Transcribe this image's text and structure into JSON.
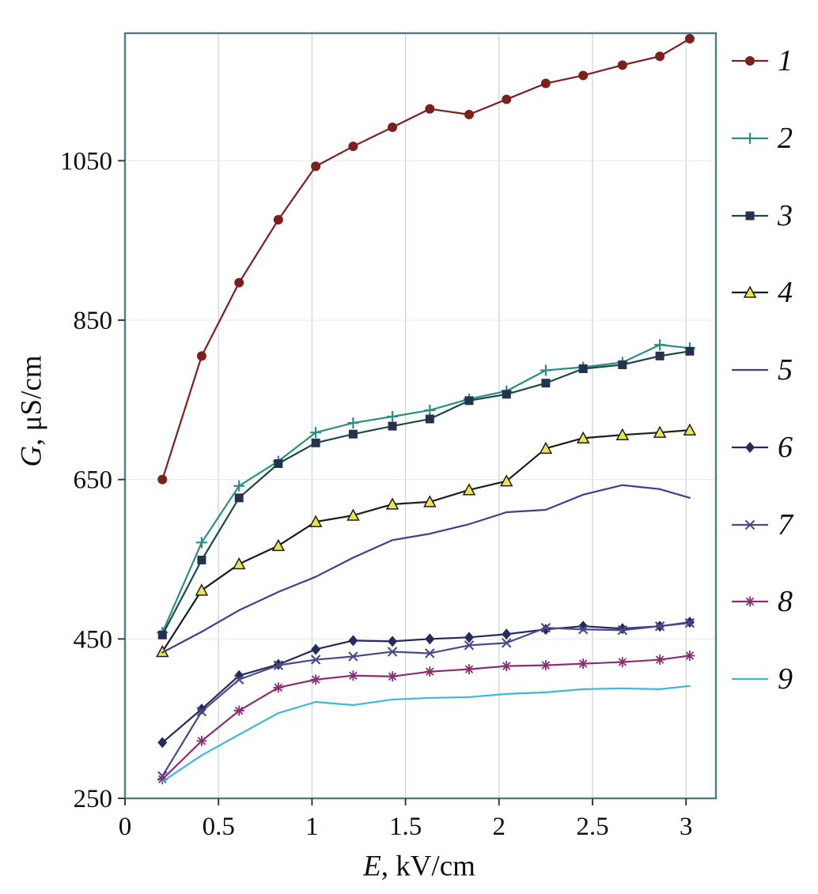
{
  "chart_data": {
    "type": "line",
    "title": "",
    "xlabel": "E, kV/cm",
    "xlabel_var": "E",
    "xlabel_rest": ", kV/cm",
    "ylabel": "G, μS/cm",
    "ylabel_var": "G",
    "ylabel_rest": ", μS/cm",
    "xlim": [
      0,
      3.16
    ],
    "ylim": [
      250,
      1210
    ],
    "xticks": [
      0,
      0.5,
      1,
      1.5,
      2,
      2.5,
      3
    ],
    "yticks": [
      250,
      450,
      650,
      850,
      1050
    ],
    "grid": true,
    "legend_position": "right",
    "x": [
      0.2,
      0.41,
      0.61,
      0.82,
      1.02,
      1.22,
      1.43,
      1.63,
      1.84,
      2.04,
      2.25,
      2.45,
      2.66,
      2.86,
      3.02
    ],
    "series": [
      {
        "label": "1",
        "color": "#7b1f1f",
        "marker": "circle",
        "values": [
          650,
          805,
          897,
          976,
          1043,
          1068,
          1092,
          1115,
          1108,
          1127,
          1147,
          1157,
          1170,
          1181,
          1203
        ]
      },
      {
        "label": "2",
        "color": "#2a8f82",
        "marker": "plus",
        "values": [
          458,
          571,
          642,
          673,
          709,
          721,
          729,
          737,
          751,
          761,
          787,
          791,
          797,
          819,
          815
        ]
      },
      {
        "label": "3",
        "color": "#24314f",
        "line_color": "#1d4a40",
        "marker": "square",
        "values": [
          455,
          549,
          627,
          670,
          696,
          707,
          717,
          726,
          749,
          757,
          771,
          789,
          794,
          805,
          811
        ]
      },
      {
        "label": "4",
        "color": "#1c1c1c",
        "marker": "triangle",
        "marker_fill": "#eae74e",
        "marker_edge": "#1c1c1c",
        "values": [
          434,
          511,
          544,
          567,
          597,
          605,
          619,
          622,
          637,
          648,
          689,
          702,
          706,
          709,
          712
        ]
      },
      {
        "label": "5",
        "color": "#3f3f8f",
        "marker": "none",
        "values": [
          433,
          459,
          486,
          509,
          528,
          552,
          574,
          582,
          594,
          609,
          612,
          631,
          643,
          638,
          627
        ]
      },
      {
        "label": "6",
        "color": "#252a5e",
        "marker": "diamond",
        "values": [
          320,
          362,
          404,
          418,
          437,
          448,
          447,
          450,
          452,
          456,
          462,
          466,
          463,
          466,
          471
        ]
      },
      {
        "label": "7",
        "color": "#4a4a8a",
        "marker": "x",
        "values": [
          278,
          359,
          399,
          417,
          424,
          428,
          434,
          432,
          442,
          445,
          464,
          462,
          461,
          466,
          470
        ]
      },
      {
        "label": "8",
        "color": "#8b2d72",
        "marker": "asterisk",
        "values": [
          274,
          322,
          360,
          389,
          399,
          404,
          403,
          409,
          412,
          416,
          417,
          419,
          421,
          424,
          429
        ]
      },
      {
        "label": "9",
        "color": "#3fb8d8",
        "marker": "none",
        "values": [
          271,
          304,
          330,
          357,
          371,
          367,
          374,
          376,
          377,
          381,
          383,
          387,
          388,
          387,
          391
        ]
      }
    ],
    "colors": {
      "plot_border": "#4e7d7d",
      "gridline": "#cfd6d6",
      "tick": "#3b3b3b",
      "text": "#101010"
    }
  }
}
